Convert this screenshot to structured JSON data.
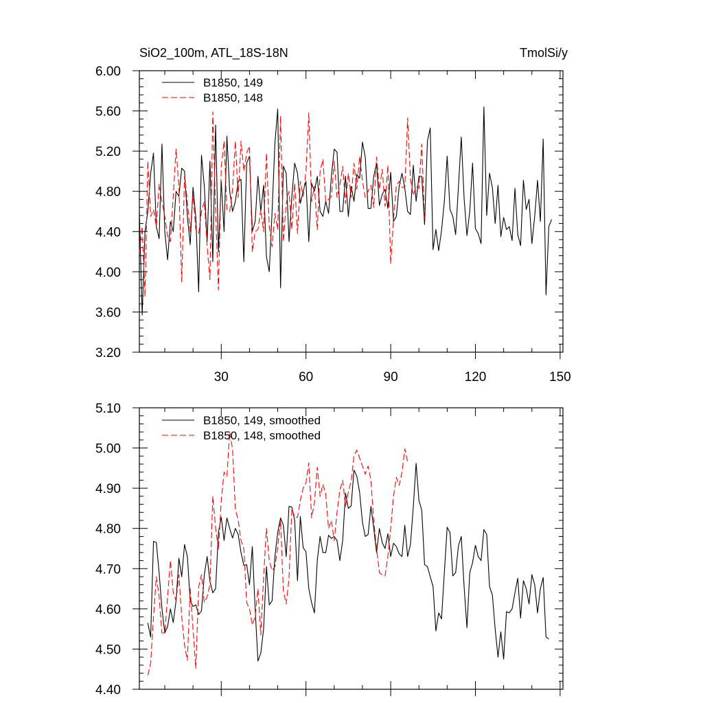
{
  "chart_data": [
    {
      "type": "line",
      "title": "SiO2_100m, ATL_18S-18N",
      "units": "TmolSi/y",
      "xlabel": "",
      "ylabel": "",
      "xlim": [
        1,
        151
      ],
      "ylim": [
        3.2,
        6.0
      ],
      "xticks": [
        30,
        60,
        90,
        120,
        150
      ],
      "xtick_labels": [
        "30",
        "60",
        "90",
        "120",
        "150"
      ],
      "yticks": [
        3.2,
        3.6,
        4.0,
        4.4,
        4.8,
        5.2,
        5.6,
        6.0
      ],
      "ytick_labels": [
        "3.20",
        "3.60",
        "4.00",
        "4.40",
        "4.80",
        "5.20",
        "5.60",
        "6.00"
      ],
      "grid": false,
      "legend_position": "top-left",
      "series": [
        {
          "name": "B1850, 149",
          "color": "#000000",
          "dash": "solid",
          "x_start": 1,
          "values": [
            4.6,
            3.57,
            4.4,
            4.6,
            4.98,
            5.18,
            4.45,
            4.33,
            5.27,
            4.4,
            4.12,
            4.5,
            4.4,
            4.8,
            4.75,
            5.03,
            5.0,
            4.55,
            4.27,
            4.84,
            4.54,
            3.8,
            5.16,
            4.85,
            4.3,
            5.1,
            4.1,
            5.46,
            4.2,
            4.9,
            4.4,
            5.35,
            4.8,
            4.6,
            4.7,
            4.9,
            4.92,
            4.1,
            5.08,
            5.15,
            4.4,
            4.5,
            4.95,
            4.6,
            4.86,
            4.15,
            4.0,
            4.6,
            5.28,
            5.62,
            3.84,
            5.05,
            4.98,
            4.3,
            4.75,
            5.08,
            4.98,
            4.68,
            4.8,
            4.9,
            4.3,
            4.88,
            4.8,
            4.95,
            4.6,
            4.55,
            4.7,
            4.58,
            4.95,
            5.22,
            5.19,
            4.6,
            4.6,
            4.95,
            4.55,
            4.85,
            4.7,
            4.97,
            4.93,
            5.29,
            5.14,
            4.63,
            4.63,
            4.95,
            5.08,
            4.66,
            4.77,
            4.82,
            4.63,
            4.99,
            4.5,
            4.55,
            4.85,
            4.98,
            4.83,
            4.6,
            4.57,
            5.06,
            4.7,
            4.95,
            4.95,
            4.47,
            5.3,
            5.43,
            4.22,
            4.42,
            4.21,
            4.41,
            4.7,
            5.15,
            4.62,
            4.55,
            4.37,
            4.85,
            5.34,
            4.73,
            4.36,
            4.6,
            5.08,
            4.43,
            4.38,
            4.28,
            5.64,
            4.56,
            4.98,
            4.84,
            4.48,
            4.86,
            4.35,
            4.54,
            4.42,
            4.45,
            4.31,
            4.83,
            4.37,
            4.26,
            4.91,
            4.62,
            4.72,
            4.28,
            4.55,
            4.91,
            4.5,
            5.32,
            3.77,
            4.45,
            4.52
          ]
        },
        {
          "name": "B1850, 148",
          "color": "#ff0000",
          "dash": "dashed",
          "x_start": 1,
          "values": [
            4.2,
            4.45,
            3.75,
            5.1,
            4.55,
            4.62,
            4.45,
            4.87,
            4.7,
            4.55,
            4.35,
            4.3,
            4.75,
            5.22,
            4.85,
            3.9,
            4.95,
            4.7,
            4.4,
            4.76,
            4.42,
            4.38,
            4.6,
            4.7,
            4.26,
            3.92,
            5.59,
            4.6,
            3.82,
            5.04,
            5.3,
            4.62,
            4.6,
            4.82,
            5.3,
            4.74,
            5.3,
            5.0,
            5.18,
            5.25,
            4.2,
            4.4,
            4.42,
            4.62,
            4.4,
            5.18,
            4.45,
            4.25,
            4.58,
            4.42,
            5.55,
            4.3,
            4.68,
            4.8,
            4.42,
            4.88,
            4.38,
            4.9,
            4.75,
            5.0,
            5.58,
            4.7,
            4.85,
            4.42,
            5.0,
            5.12,
            4.7,
            4.72,
            4.75,
            5.1,
            4.74,
            4.86,
            5.05,
            4.68,
            4.98,
            4.74,
            5.08,
            4.82,
            5.15,
            4.9,
            4.74,
            4.8,
            4.86,
            4.64,
            5.14,
            4.82,
            5.02,
            4.65,
            5.06,
            4.08,
            4.52,
            4.86,
            4.9,
            4.84,
            4.84,
            5.53,
            4.92,
            4.76,
            4.85,
            4.83,
            5.27,
            4.5
          ]
        }
      ]
    },
    {
      "type": "line",
      "title": "",
      "xlabel": "",
      "ylabel": "",
      "xlim": [
        1,
        151
      ],
      "ylim": [
        4.4,
        5.1
      ],
      "xticks": [
        30,
        60,
        90,
        120,
        150
      ],
      "xtick_labels": [],
      "yticks": [
        4.4,
        4.5,
        4.6,
        4.7,
        4.8,
        4.9,
        5.0,
        5.1
      ],
      "ytick_labels": [
        "4.40",
        "4.50",
        "4.60",
        "4.70",
        "4.80",
        "4.90",
        "5.00",
        "5.10"
      ],
      "grid": false,
      "legend_position": "top-left",
      "series": [
        {
          "name": "B1850, 149, smoothed",
          "color": "#000000",
          "dash": "solid",
          "x_start": 4,
          "values": [
            4.565,
            4.53,
            4.768,
            4.765,
            4.69,
            4.6,
            4.54,
            4.556,
            4.6,
            4.566,
            4.62,
            4.726,
            4.68,
            4.76,
            4.73,
            4.62,
            4.606,
            4.61,
            4.586,
            4.595,
            4.685,
            4.73,
            4.668,
            4.64,
            4.65,
            4.79,
            4.828,
            4.77,
            4.826,
            4.8,
            4.776,
            4.8,
            4.785,
            4.74,
            4.708,
            4.71,
            4.66,
            4.755,
            4.6,
            4.47,
            4.49,
            4.55,
            4.705,
            4.61,
            4.62,
            4.73,
            4.79,
            4.826,
            4.808,
            4.73,
            4.855,
            4.853,
            4.82,
            4.67,
            4.83,
            4.752,
            4.742,
            4.65,
            4.615,
            4.59,
            4.72,
            4.78,
            4.74,
            4.74,
            4.783,
            4.775,
            4.78,
            4.77,
            4.72,
            4.77,
            4.888,
            4.85,
            4.856,
            4.945,
            4.93,
            4.89,
            4.815,
            4.78,
            4.785,
            4.855,
            4.8,
            4.74,
            4.8,
            4.765,
            4.75,
            4.787,
            4.73,
            4.763,
            4.755,
            4.737,
            4.73,
            4.808,
            4.73,
            4.76,
            4.853,
            4.962,
            4.87,
            4.845,
            4.71,
            4.705,
            4.68,
            4.656,
            4.545,
            4.59,
            4.575,
            4.69,
            4.803,
            4.79,
            4.682,
            4.69,
            4.757,
            4.78,
            4.655,
            4.553,
            4.69,
            4.715,
            4.758,
            4.73,
            4.72,
            4.797,
            4.785,
            4.655,
            4.635,
            4.55,
            4.48,
            4.543,
            4.475,
            4.593,
            4.59,
            4.6,
            4.64,
            4.676,
            4.577,
            4.67,
            4.65,
            4.612,
            4.685,
            4.66,
            4.59,
            4.65,
            4.678,
            4.53,
            4.525
          ]
        },
        {
          "name": "B1850, 148, smoothed",
          "color": "#ff0000",
          "dash": "dashed",
          "x_start": 4,
          "values": [
            4.435,
            4.465,
            4.58,
            4.68,
            4.63,
            4.54,
            4.54,
            4.63,
            4.72,
            4.64,
            4.62,
            4.685,
            4.58,
            4.51,
            4.472,
            4.65,
            4.55,
            4.452,
            4.655,
            4.685,
            4.616,
            4.63,
            4.66,
            4.88,
            4.8,
            4.747,
            4.87,
            4.94,
            4.93,
            5.04,
            4.997,
            4.848,
            4.82,
            4.77,
            4.75,
            4.616,
            4.6,
            4.56,
            4.58,
            4.65,
            4.535,
            4.68,
            4.8,
            4.72,
            4.695,
            4.705,
            4.754,
            4.82,
            4.645,
            4.612,
            4.676,
            4.85,
            4.828,
            4.828,
            4.87,
            4.9,
            4.914,
            4.963,
            4.826,
            4.865,
            4.952,
            4.88,
            4.91,
            4.885,
            4.8,
            4.82,
            4.77,
            4.84,
            4.895,
            4.92,
            4.855,
            4.89,
            4.918,
            4.98,
            4.995,
            4.975,
            4.955,
            4.935,
            4.955,
            4.92,
            4.82,
            4.75,
            4.69,
            4.685,
            4.682,
            4.73,
            4.8,
            4.88,
            4.927,
            4.907,
            4.94,
            4.998,
            4.965
          ]
        }
      ]
    }
  ]
}
